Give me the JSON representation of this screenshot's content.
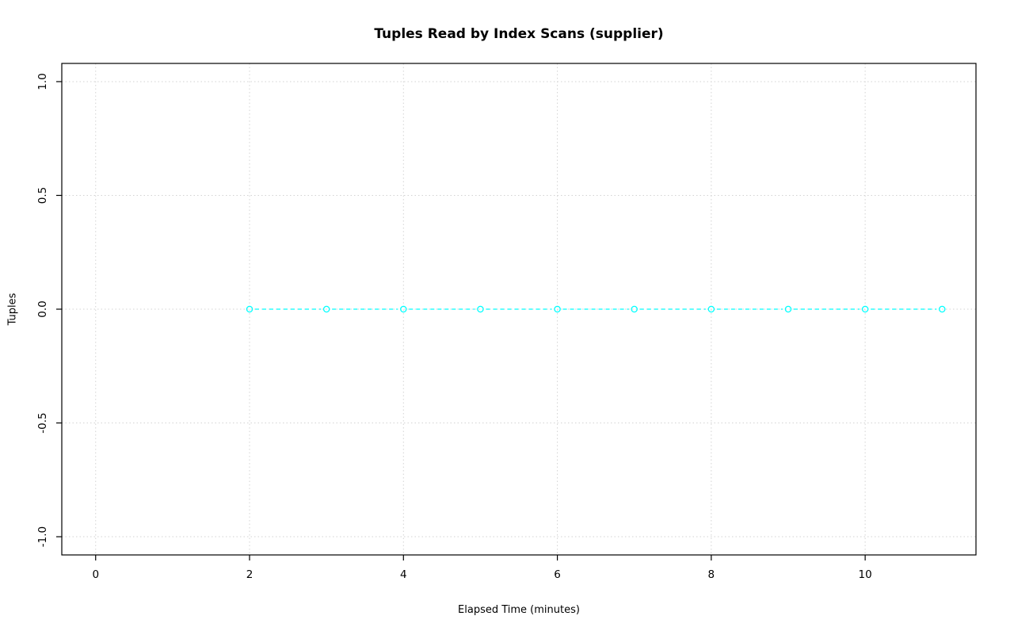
{
  "chart_data": {
    "type": "line",
    "title": "Tuples Read by Index Scans (supplier)",
    "xlabel": "Elapsed Time (minutes)",
    "ylabel": "Tuples",
    "x": [
      2,
      3,
      4,
      5,
      6,
      7,
      8,
      9,
      10,
      11
    ],
    "y": [
      0,
      0,
      0,
      0,
      0,
      0,
      0,
      0,
      0,
      0
    ],
    "xlim": [
      -0.44,
      11.44
    ],
    "ylim": [
      -1.08,
      1.08
    ],
    "xticks": [
      0,
      2,
      4,
      6,
      8,
      10
    ],
    "xtick_labels": [
      "0",
      "2",
      "4",
      "6",
      "8",
      "10"
    ],
    "yticks": [
      -1.0,
      -0.5,
      0.0,
      0.5,
      1.0
    ],
    "ytick_labels": [
      "-1.0",
      "-0.5",
      "0.0",
      "0.5",
      "1.0"
    ],
    "grid": true,
    "legend": "none",
    "line_style": "dashed",
    "marker": "open-circle",
    "series_color": "#00ffff",
    "grid_color": "#d3d3d3",
    "axis_color": "#000000",
    "text_color": "#000000"
  }
}
